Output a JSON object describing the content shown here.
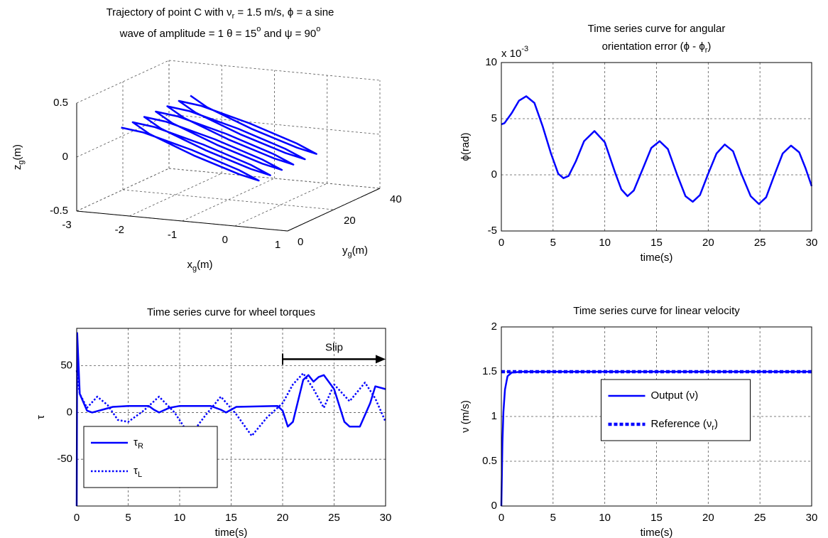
{
  "chart_data": [
    {
      "type": "line3d",
      "title": [
        [
          {
            "text": "Trajectory of point C with ν"
          },
          {
            "text": "r",
            "script": "sub"
          },
          {
            "text": " = 1.5 m/s, ϕ = a sine"
          }
        ],
        [
          {
            "text": "wave of amplitude = 1 θ = 15"
          },
          {
            "text": "o",
            "script": "sup"
          },
          {
            "text": " and ψ = 90"
          },
          {
            "text": "o",
            "script": "sup"
          }
        ]
      ],
      "xlabel": [
        {
          "text": "x"
        },
        {
          "text": "g",
          "script": "sub"
        },
        {
          "text": "(m)"
        }
      ],
      "ylabel": [
        {
          "text": "y"
        },
        {
          "text": "g",
          "script": "sub"
        },
        {
          "text": "(m)"
        }
      ],
      "zlabel": [
        {
          "text": "z"
        },
        {
          "text": "g",
          "script": "sub"
        },
        {
          "text": "(m)"
        }
      ],
      "xlim": [
        -3,
        1
      ],
      "ylim": [
        0,
        40
      ],
      "zlim": [
        -0.5,
        0.5
      ],
      "xticks": [
        -3,
        -2,
        -1,
        0,
        1
      ],
      "yticks": [
        0,
        20,
        40
      ],
      "zticks": [
        -0.5,
        0,
        0.5
      ],
      "grid": true,
      "series": [
        {
          "color": "#0000ff",
          "x": [
            -2.2,
            -1.83,
            -0.95,
            -0.07,
            0.3,
            -0.07,
            -0.95,
            -1.83,
            -2.2,
            -1.83,
            -0.95,
            -0.07,
            0.3,
            -0.07,
            -0.95,
            -1.83,
            -2.2,
            -1.83,
            -0.95,
            -0.07,
            0.3,
            -0.07,
            -0.95,
            -1.83,
            -2.2,
            -1.83,
            -0.95,
            -0.07,
            0.3,
            -0.07,
            -0.95,
            -1.83,
            -2.2,
            -1.83,
            -0.95,
            -0.07,
            0.3,
            -0.07,
            -0.95,
            -1.83,
            -2.2,
            -1.83,
            -0.95,
            -0.07,
            0.3,
            -0.07,
            -0.95,
            -1.83,
            -2.2
          ],
          "y": [
            1,
            2.2,
            3.05,
            3.44,
            3.5,
            3.56,
            3.95,
            4.81,
            6,
            7.2,
            8.05,
            8.44,
            8.5,
            8.56,
            8.95,
            9.81,
            11,
            12.2,
            13.05,
            13.44,
            13.5,
            13.56,
            13.95,
            14.81,
            16,
            17.2,
            18.05,
            18.44,
            18.5,
            18.56,
            18.95,
            19.81,
            21,
            22.2,
            23.05,
            23.44,
            23.5,
            23.56,
            23.95,
            24.81,
            26,
            27.2,
            28.05,
            28.44,
            28.5,
            28.56,
            28.95,
            29.81,
            31
          ],
          "z": [
            0.3,
            0.26,
            0.13,
            -0.02,
            -0.1,
            -0.06,
            0.07,
            0.22,
            0.3,
            0.26,
            0.13,
            -0.02,
            -0.1,
            -0.06,
            0.07,
            0.22,
            0.3,
            0.26,
            0.13,
            -0.02,
            -0.1,
            -0.06,
            0.07,
            0.22,
            0.3,
            0.26,
            0.13,
            -0.02,
            -0.1,
            -0.06,
            0.07,
            0.22,
            0.3,
            0.26,
            0.13,
            -0.02,
            -0.1,
            -0.06,
            0.07,
            0.22,
            0.3,
            0.26,
            0.13,
            -0.02,
            -0.1,
            -0.06,
            0.07,
            0.22,
            0.3
          ]
        }
      ]
    },
    {
      "type": "line",
      "title": [
        [
          {
            "text": "Time series curve for angular"
          }
        ],
        [
          {
            "text": "orientation error (ϕ - ϕ"
          },
          {
            "text": "r",
            "script": "sub"
          },
          {
            "text": ")"
          }
        ]
      ],
      "exponent": [
        {
          "text": "x 10"
        },
        {
          "text": "-3",
          "script": "sup"
        }
      ],
      "xlabel": [
        {
          "text": "time(s)"
        }
      ],
      "ylabel": [
        {
          "text": "ϕ(rad)"
        }
      ],
      "xlim": [
        0,
        30
      ],
      "ylim": [
        -5,
        10
      ],
      "xticks": [
        0,
        5,
        10,
        15,
        20,
        25,
        30
      ],
      "yticks": [
        -5,
        0,
        5,
        10
      ],
      "grid": true,
      "series": [
        {
          "color": "#0000ff",
          "linestyle": "solid",
          "linewidth": 2.5,
          "x": [
            0,
            0.3,
            1,
            1.7,
            2.4,
            3.2,
            4,
            4.8,
            5.5,
            6,
            6.5,
            7.2,
            8,
            9,
            10,
            11,
            11.6,
            12.2,
            12.8,
            13.7,
            14.5,
            15.3,
            16.1,
            17,
            17.8,
            18.5,
            19.2,
            20,
            20.8,
            21.6,
            22.4,
            23.2,
            24.1,
            24.9,
            25.6,
            26.4,
            27.2,
            28,
            28.8,
            29.4,
            30
          ],
          "values": [
            4.5,
            4.6,
            5.5,
            6.6,
            7.0,
            6.4,
            4.3,
            1.9,
            0.1,
            -0.3,
            -0.1,
            1.2,
            3.0,
            3.9,
            2.9,
            0.2,
            -1.3,
            -1.9,
            -1.4,
            0.6,
            2.4,
            3.0,
            2.3,
            0,
            -1.9,
            -2.4,
            -1.8,
            0.1,
            1.9,
            2.7,
            2.1,
            0.1,
            -1.9,
            -2.6,
            -2.0,
            0,
            1.9,
            2.6,
            2.0,
            0.6,
            -1.0
          ]
        }
      ]
    },
    {
      "type": "line",
      "title": [
        [
          {
            "text": "Time series curve for wheel torques"
          }
        ]
      ],
      "xlabel": [
        {
          "text": "time(s)"
        }
      ],
      "ylabel": [
        {
          "text": "τ"
        }
      ],
      "xlim": [
        0,
        30
      ],
      "ylim": [
        -100,
        90
      ],
      "xticks": [
        0,
        5,
        10,
        15,
        20,
        25,
        30
      ],
      "yticks": [
        -50,
        0,
        50
      ],
      "grid": true,
      "legend": "lower left",
      "annotations": [
        {
          "text": "Slip",
          "x": [
            20,
            30
          ],
          "y": 57
        }
      ],
      "series": [
        {
          "name": [
            {
              "text": "τ"
            },
            {
              "text": "R",
              "script": "sub"
            }
          ],
          "color": "#0000ff",
          "linestyle": "solid",
          "linewidth": 2.5,
          "x": [
            0,
            0.05,
            0.3,
            1,
            1.5,
            2.5,
            3.5,
            5,
            7,
            7.5,
            8,
            9,
            10,
            13,
            14,
            14.5,
            15.5,
            19.5,
            20,
            20.5,
            21,
            22,
            22.5,
            23,
            23.5,
            24,
            25,
            26,
            26.5,
            27.5,
            28.5,
            29,
            30
          ],
          "values": [
            -100,
            85,
            20,
            2,
            0,
            3,
            6,
            7,
            7,
            3,
            0,
            5,
            7,
            7,
            3,
            0,
            6,
            7,
            2,
            -15,
            -10,
            35,
            40,
            33,
            38,
            40,
            25,
            -10,
            -15,
            -15,
            10,
            28,
            25
          ]
        },
        {
          "name": [
            {
              "text": "τ"
            },
            {
              "text": "L",
              "script": "sub"
            }
          ],
          "color": "#0000ff",
          "linestyle": "dotted",
          "linewidth": 2.5,
          "x": [
            0,
            0.3,
            1,
            2,
            3,
            4,
            5,
            6.5,
            8,
            9.5,
            11,
            12.5,
            14,
            15.5,
            17,
            18.5,
            20,
            21,
            22,
            23,
            24,
            25,
            26.5,
            28,
            29,
            30
          ],
          "values": [
            45,
            20,
            5,
            17,
            8,
            -8,
            -10,
            2,
            17,
            0,
            -25,
            -3,
            17,
            -2,
            -25,
            -5,
            10,
            30,
            42,
            25,
            5,
            30,
            12,
            32,
            15,
            -10
          ]
        }
      ]
    },
    {
      "type": "line",
      "title": [
        [
          {
            "text": "Time series curve for linear velocity"
          }
        ]
      ],
      "xlabel": [
        {
          "text": "time(s)"
        }
      ],
      "ylabel": [
        {
          "text": "ν (m/s)"
        }
      ],
      "xlim": [
        0,
        30
      ],
      "ylim": [
        0,
        2
      ],
      "xticks": [
        0,
        5,
        10,
        15,
        20,
        25,
        30
      ],
      "yticks": [
        0,
        0.5,
        1,
        1.5,
        2
      ],
      "grid": true,
      "legend": "center",
      "series": [
        {
          "name": [
            {
              "text": "Output (ν)"
            }
          ],
          "color": "#0000ff",
          "linestyle": "solid",
          "linewidth": 2.5,
          "x": [
            0,
            0.1,
            0.2,
            0.35,
            0.6,
            1,
            2,
            30
          ],
          "values": [
            0,
            0.7,
            1.05,
            1.3,
            1.45,
            1.49,
            1.5,
            1.5
          ]
        },
        {
          "name": [
            {
              "text": "Reference (ν"
            },
            {
              "text": "r",
              "script": "sub"
            },
            {
              "text": ")"
            }
          ],
          "color": "#0000ff",
          "linestyle": "dashed",
          "linewidth": 4.5,
          "x": [
            0,
            30
          ],
          "values": [
            1.5,
            1.5
          ]
        }
      ]
    }
  ]
}
